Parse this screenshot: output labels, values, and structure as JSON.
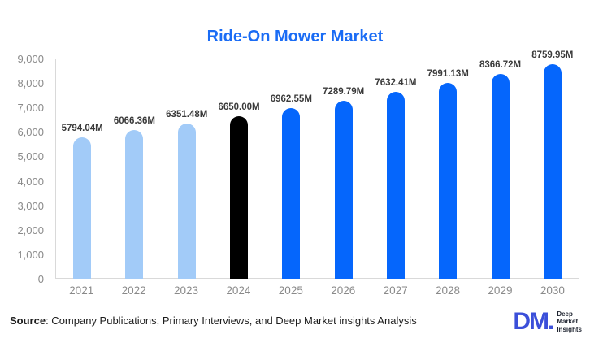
{
  "title": "Ride-On Mower Market",
  "colors": {
    "title": "#1a6cf5",
    "bar_historic": "#a2cbf8",
    "bar_base_year": "#000000",
    "bar_forecast": "#0566fc",
    "axis_line": "#d9d9d9",
    "tick_label": "#8a8a8a",
    "data_label": "#3a3a3a",
    "logo_blue": "#3b4fd9"
  },
  "chart_data": {
    "type": "bar",
    "title": "Ride-On Mower Market",
    "categories": [
      "2021",
      "2022",
      "2023",
      "2024",
      "2025",
      "2026",
      "2027",
      "2028",
      "2029",
      "2030"
    ],
    "values": [
      5794.04,
      6066.36,
      6351.48,
      6650.0,
      6962.55,
      7289.79,
      7632.41,
      7991.13,
      8366.72,
      8759.95
    ],
    "data_labels": [
      "5794.04M",
      "6066.36M",
      "6351.48M",
      "6650.00M",
      "6962.55M",
      "7289.79M",
      "7632.41M",
      "7991.13M",
      "8366.72M",
      "8759.95M"
    ],
    "bar_colors": [
      "#a2cbf8",
      "#a2cbf8",
      "#a2cbf8",
      "#000000",
      "#0566fc",
      "#0566fc",
      "#0566fc",
      "#0566fc",
      "#0566fc",
      "#0566fc"
    ],
    "xlabel": "",
    "ylabel": "",
    "ylim": [
      0,
      9000
    ],
    "ytick_labels": [
      "0",
      "1,000",
      "2,000",
      "3,000",
      "4,000",
      "5,000",
      "6,000",
      "7,000",
      "8,000",
      "9,000"
    ],
    "grid": false,
    "legend": false
  },
  "footer": {
    "source_prefix": "Source",
    "source_text": ": Company Publications, Primary Interviews, and Deep Market insights Analysis"
  },
  "logo": {
    "monogram": "DM.",
    "line1": "Deep",
    "line2": "Market",
    "line3": "Insights"
  }
}
